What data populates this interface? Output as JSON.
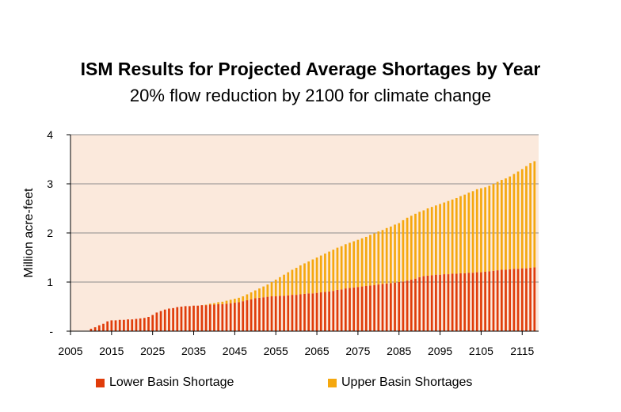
{
  "chart_data": {
    "type": "bar",
    "stacked": true,
    "title": "ISM Results for Projected Average Shortages by Year",
    "subtitle": "20% flow reduction by 2100 for climate change",
    "ylabel": "Million acre-feet",
    "xlabel": "",
    "ylim": [
      0,
      4
    ],
    "yticks": [
      {
        "value": 0,
        "label": "-"
      },
      {
        "value": 1,
        "label": "1"
      },
      {
        "value": 2,
        "label": "2"
      },
      {
        "value": 3,
        "label": "3"
      },
      {
        "value": 4,
        "label": "4"
      }
    ],
    "xlim": [
      2005,
      2119
    ],
    "xticks": [
      "2005",
      "2015",
      "2025",
      "2035",
      "2045",
      "2055",
      "2065",
      "2075",
      "2085",
      "2095",
      "2105",
      "2115"
    ],
    "grid": "horizontal",
    "legend_position": "bottom",
    "plot_background": "#fbe9dc",
    "categories": [
      2010,
      2011,
      2012,
      2013,
      2014,
      2015,
      2016,
      2017,
      2018,
      2019,
      2020,
      2021,
      2022,
      2023,
      2024,
      2025,
      2026,
      2027,
      2028,
      2029,
      2030,
      2031,
      2032,
      2033,
      2034,
      2035,
      2036,
      2037,
      2038,
      2039,
      2040,
      2041,
      2042,
      2043,
      2044,
      2045,
      2046,
      2047,
      2048,
      2049,
      2050,
      2051,
      2052,
      2053,
      2054,
      2055,
      2056,
      2057,
      2058,
      2059,
      2060,
      2061,
      2062,
      2063,
      2064,
      2065,
      2066,
      2067,
      2068,
      2069,
      2070,
      2071,
      2072,
      2073,
      2074,
      2075,
      2076,
      2077,
      2078,
      2079,
      2080,
      2081,
      2082,
      2083,
      2084,
      2085,
      2086,
      2087,
      2088,
      2089,
      2090,
      2091,
      2092,
      2093,
      2094,
      2095,
      2096,
      2097,
      2098,
      2099,
      2100,
      2101,
      2102,
      2103,
      2104,
      2105,
      2106,
      2107,
      2108,
      2109,
      2110,
      2111,
      2112,
      2113,
      2114,
      2115,
      2116,
      2117,
      2118
    ],
    "series": [
      {
        "name": "Lower Basin Shortage",
        "color": "#e03c0a",
        "values": [
          0.05,
          0.08,
          0.12,
          0.15,
          0.2,
          0.22,
          0.22,
          0.23,
          0.23,
          0.24,
          0.24,
          0.25,
          0.26,
          0.27,
          0.29,
          0.33,
          0.38,
          0.41,
          0.44,
          0.46,
          0.47,
          0.49,
          0.5,
          0.51,
          0.51,
          0.52,
          0.52,
          0.53,
          0.53,
          0.54,
          0.54,
          0.55,
          0.55,
          0.56,
          0.57,
          0.58,
          0.59,
          0.61,
          0.63,
          0.65,
          0.67,
          0.68,
          0.69,
          0.7,
          0.71,
          0.71,
          0.72,
          0.72,
          0.73,
          0.74,
          0.74,
          0.75,
          0.76,
          0.77,
          0.77,
          0.78,
          0.79,
          0.8,
          0.81,
          0.82,
          0.84,
          0.85,
          0.87,
          0.88,
          0.89,
          0.9,
          0.91,
          0.92,
          0.93,
          0.94,
          0.95,
          0.96,
          0.97,
          0.98,
          0.99,
          1.0,
          1.01,
          1.03,
          1.05,
          1.07,
          1.1,
          1.12,
          1.13,
          1.14,
          1.15,
          1.15,
          1.16,
          1.16,
          1.17,
          1.17,
          1.18,
          1.18,
          1.19,
          1.19,
          1.2,
          1.2,
          1.21,
          1.22,
          1.23,
          1.24,
          1.25,
          1.25,
          1.26,
          1.27,
          1.27,
          1.28,
          1.28,
          1.29,
          1.3
        ]
      },
      {
        "name": "Upper Basin Shortages",
        "color": "#f5a80f",
        "values": [
          0,
          0,
          0,
          0,
          0,
          0,
          0,
          0,
          0,
          0,
          0,
          0,
          0,
          0,
          0,
          0,
          0,
          0,
          0,
          0,
          0,
          0,
          0,
          0,
          0,
          0,
          0,
          0,
          0.01,
          0.02,
          0.03,
          0.04,
          0.05,
          0.06,
          0.07,
          0.08,
          0.09,
          0.1,
          0.12,
          0.14,
          0.16,
          0.19,
          0.22,
          0.25,
          0.29,
          0.34,
          0.38,
          0.43,
          0.47,
          0.51,
          0.55,
          0.59,
          0.62,
          0.65,
          0.69,
          0.72,
          0.75,
          0.78,
          0.81,
          0.84,
          0.86,
          0.88,
          0.9,
          0.92,
          0.94,
          0.96,
          0.98,
          1.0,
          1.03,
          1.05,
          1.08,
          1.1,
          1.13,
          1.15,
          1.18,
          1.2,
          1.25,
          1.28,
          1.3,
          1.32,
          1.33,
          1.34,
          1.37,
          1.39,
          1.41,
          1.44,
          1.46,
          1.49,
          1.51,
          1.54,
          1.57,
          1.6,
          1.63,
          1.66,
          1.69,
          1.71,
          1.72,
          1.74,
          1.77,
          1.8,
          1.83,
          1.86,
          1.89,
          1.93,
          1.98,
          2.02,
          2.08,
          2.13,
          2.16
        ]
      }
    ]
  }
}
